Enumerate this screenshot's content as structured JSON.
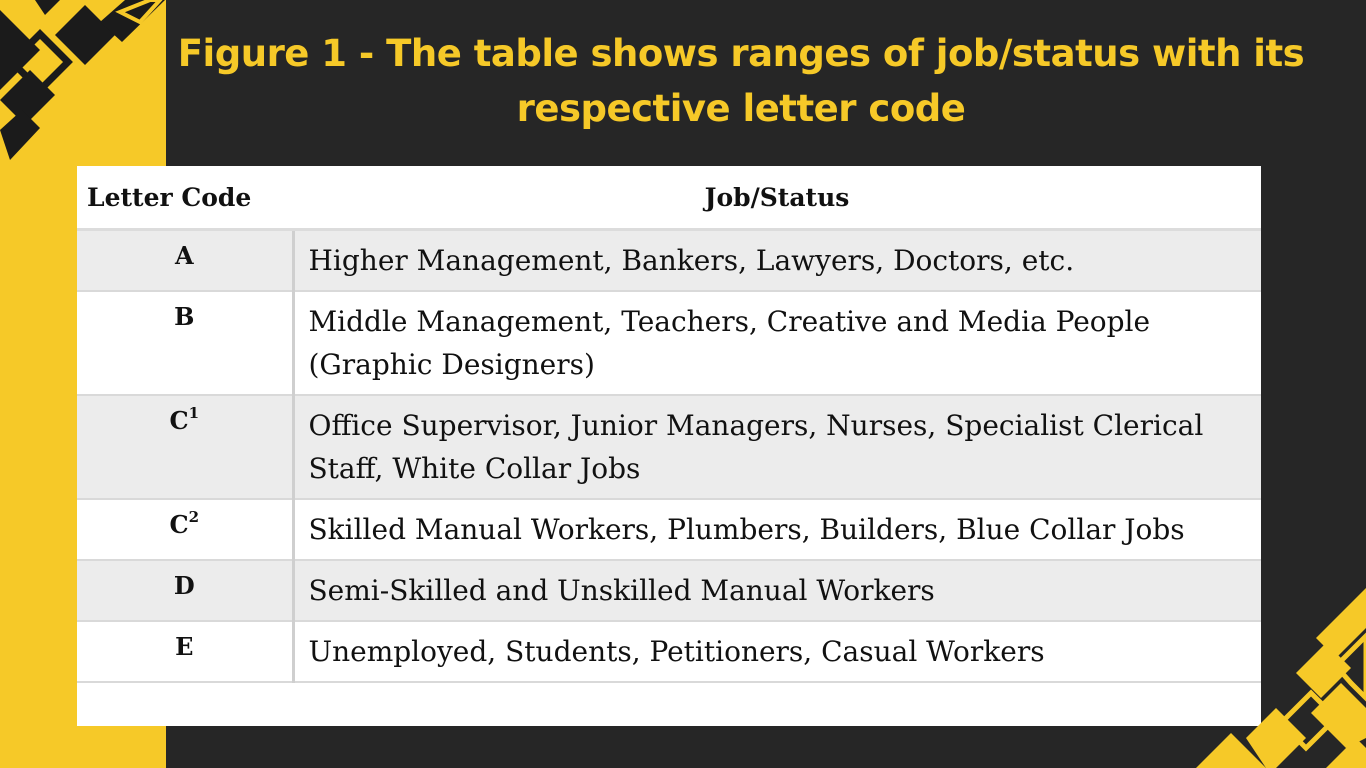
{
  "slide": {
    "title": "Figure 1 - The table shows ranges of job/status with its respective letter code"
  },
  "colors": {
    "accent_yellow": "#f6c928",
    "background": "#262626",
    "row_shade": "#ececec"
  },
  "table": {
    "headers": {
      "code": "Letter Code",
      "job": "Job/Status"
    },
    "rows": [
      {
        "code": "A",
        "sup": "",
        "job": "Higher Management, Bankers, Lawyers, Doctors, etc."
      },
      {
        "code": "B",
        "sup": "",
        "job": "Middle Management, Teachers, Creative and Media People (Graphic Designers)"
      },
      {
        "code": "C",
        "sup": "1",
        "job": "Office Supervisor, Junior Managers, Nurses, Specialist Clerical Staff, White Collar Jobs"
      },
      {
        "code": "C",
        "sup": "2",
        "job": "Skilled Manual Workers, Plumbers, Builders, Blue Collar Jobs"
      },
      {
        "code": "D",
        "sup": "",
        "job": "Semi-Skilled and Unskilled Manual Workers"
      },
      {
        "code": "E",
        "sup": "",
        "job": "Unemployed, Students, Petitioners, Casual Workers"
      }
    ]
  }
}
